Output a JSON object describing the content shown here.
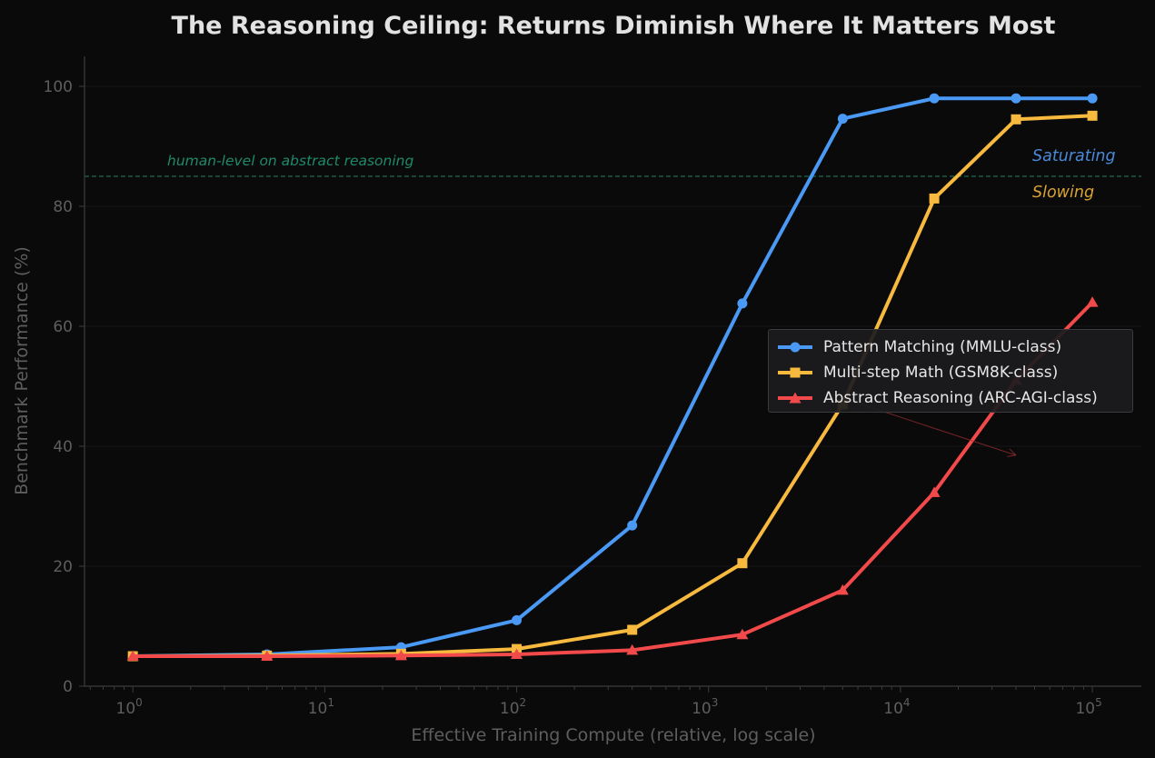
{
  "chart_data": {
    "type": "line",
    "title": "The Reasoning Ceiling: Returns Diminish Where It Matters Most",
    "xlabel": "Effective Training Compute (relative, log scale)",
    "ylabel": "Benchmark Performance (%)",
    "x_scale": "log",
    "x_ticks": [
      {
        "value": 1,
        "base": "10",
        "exp": "0"
      },
      {
        "value": 10,
        "base": "10",
        "exp": "1"
      },
      {
        "value": 100,
        "base": "10",
        "exp": "2"
      },
      {
        "value": 1000,
        "base": "10",
        "exp": "3"
      },
      {
        "value": 10000,
        "base": "10",
        "exp": "4"
      },
      {
        "value": 100000,
        "base": "10",
        "exp": "5"
      }
    ],
    "y_ticks": [
      0,
      20,
      40,
      60,
      80,
      100
    ],
    "xlim": [
      0.56,
      180000
    ],
    "ylim": [
      0,
      105
    ],
    "grid": "horizontal",
    "legend_position": "center-right",
    "x": [
      1,
      5,
      25,
      100,
      400,
      1500,
      5000,
      15000,
      40000,
      100000
    ],
    "series": [
      {
        "name": "Pattern Matching (MMLU-class)",
        "color": "#4a9af5",
        "marker": "circle",
        "values": [
          5.0,
          5.3,
          6.5,
          11.0,
          26.8,
          63.8,
          94.6,
          98.0,
          98.0,
          98.0
        ]
      },
      {
        "name": "Multi-step Math (GSM8K-class)",
        "color": "#f7b93e",
        "marker": "square",
        "values": [
          5.0,
          5.1,
          5.4,
          6.2,
          9.4,
          20.5,
          47.0,
          81.3,
          94.5,
          95.1
        ]
      },
      {
        "name": "Abstract Reasoning (ARC-AGI-class)",
        "color": "#f24a4a",
        "marker": "triangle",
        "values": [
          5.0,
          5.0,
          5.1,
          5.3,
          6.0,
          8.6,
          16.0,
          32.3,
          51.0,
          64.0
        ]
      }
    ],
    "reference_line": {
      "value": 85,
      "label": "human-level on abstract reasoning",
      "color": "#1f8a6a"
    },
    "annotations": [
      {
        "text": "Saturating",
        "color": "#4a8ad8"
      },
      {
        "text": "Slowing",
        "color": "#d9a232"
      }
    ],
    "arrow": {
      "color": "#a03030",
      "from": {
        "x": 4500,
        "y": 48.5
      },
      "to": {
        "x": 40000,
        "y": 38.5
      }
    }
  }
}
